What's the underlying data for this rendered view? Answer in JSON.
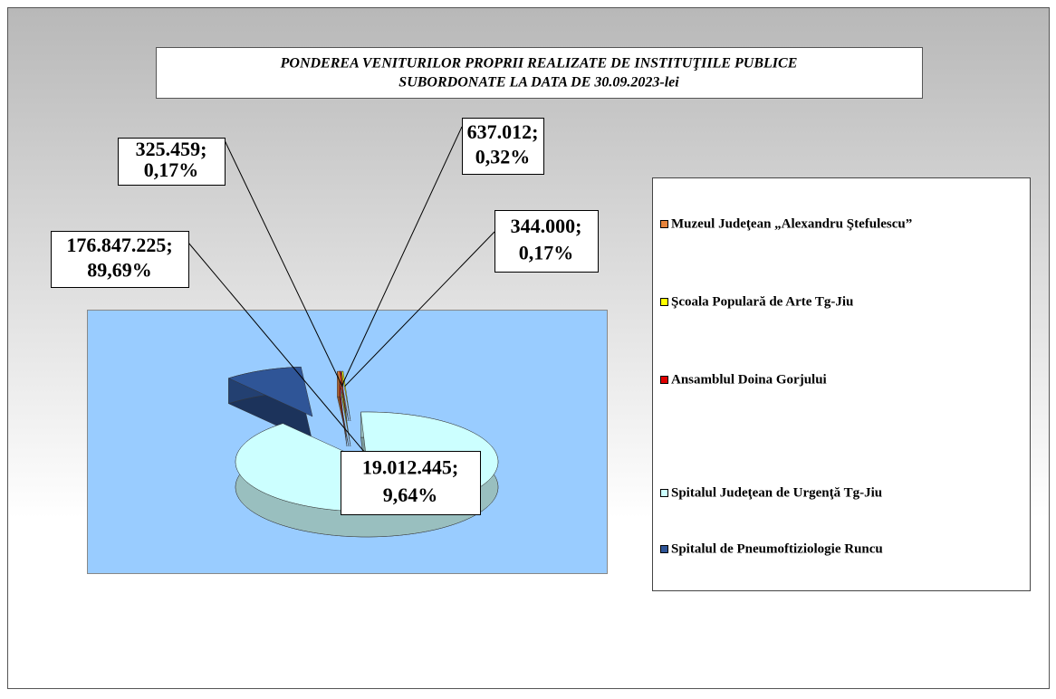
{
  "chart_data": {
    "type": "pie",
    "title": [
      "PONDEREA VENITURILOR PROPRII REALIZATE DE INSTITUŢIILE PUBLICE",
      "SUBORDONATE LA DATA DE 30.09.2023-lei"
    ],
    "categories": [
      "Muzeul Judeţean „Alexandru Ştefulescu”",
      "Şcoala Populară de Arte Tg-Jiu",
      "Ansamblul Doina Gorjului",
      "Spitalul Judeţean de Urgenţă Tg-Jiu",
      "Spitalul de Pneumoftiziologie Runcu"
    ],
    "values": [
      637012,
      344000,
      325459,
      176847225,
      19012445
    ],
    "value_labels": [
      "637.012;",
      "344.000;",
      "325.459;",
      "176.847.225;",
      "19.012.445;"
    ],
    "percents": [
      0.32,
      0.17,
      0.17,
      89.69,
      9.64
    ],
    "percent_labels": [
      "0,32%",
      "0,17%",
      "0,17%",
      "89,69%",
      "9,64%"
    ],
    "colors": [
      "#e6843c",
      "#ffff00",
      "#e00000",
      "#ccffff",
      "#2f5597"
    ],
    "legend": "right"
  }
}
